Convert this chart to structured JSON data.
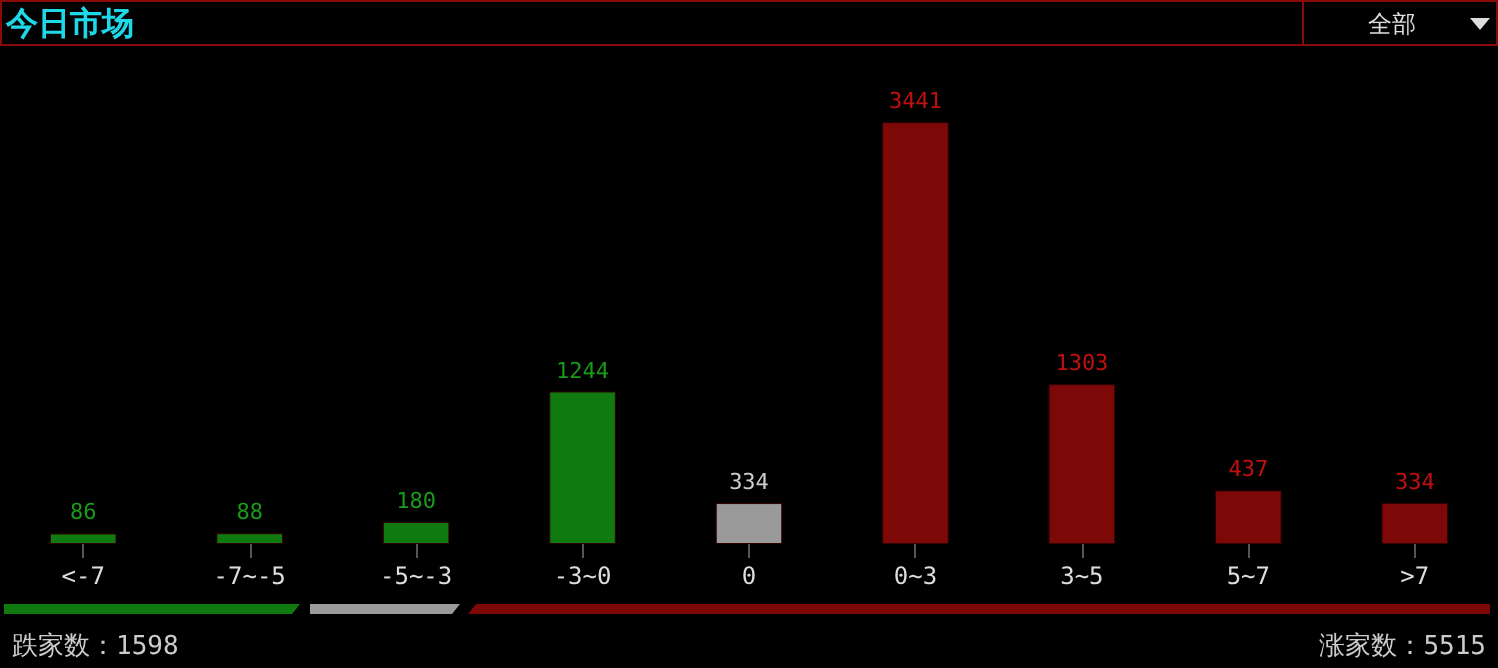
{
  "chart_data": {
    "type": "bar",
    "title": "今日市场",
    "categories": [
      "<-7",
      "-7~-5",
      "-5~-3",
      "-3~0",
      "0",
      "0~3",
      "3~5",
      "5~7",
      ">7"
    ],
    "values": [
      86,
      88,
      180,
      1244,
      334,
      3441,
      1303,
      437,
      334
    ],
    "colors": [
      "#0f7a0f",
      "#0f7a0f",
      "#0f7a0f",
      "#0f7a0f",
      "#9a9a9a",
      "#7d0808",
      "#7d0808",
      "#7d0808",
      "#7d0808"
    ],
    "data_labels": true,
    "annotations": [
      "全部",
      "跌家数：1598",
      "涨家数：5515"
    ]
  }
}
